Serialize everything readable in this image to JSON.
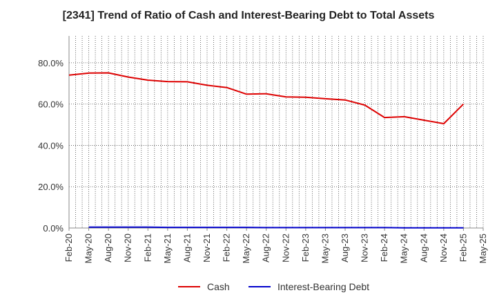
{
  "chart_data": {
    "type": "line",
    "title": "[2341]  Trend of Ratio of Cash and Interest-Bearing Debt to Total Assets",
    "xlabel": "",
    "ylabel": "",
    "ylim": [
      0,
      93
    ],
    "yticks": [
      0,
      20,
      40,
      60,
      80
    ],
    "ytick_labels": [
      "0.0%",
      "20.0%",
      "40.0%",
      "60.0%",
      "80.0%"
    ],
    "x_tick_labels": [
      "Feb-20",
      "May-20",
      "Aug-20",
      "Nov-20",
      "Feb-21",
      "May-21",
      "Aug-21",
      "Nov-21",
      "Feb-22",
      "May-22",
      "Aug-22",
      "Nov-22",
      "Feb-23",
      "May-23",
      "Aug-23",
      "Nov-23",
      "Feb-24",
      "May-24",
      "Aug-24",
      "Nov-24",
      "Feb-25",
      "May-25"
    ],
    "grid": true,
    "legend_position": "bottom",
    "series": [
      {
        "name": "Cash",
        "color": "#dd0000",
        "values": [
          74.0,
          75.0,
          75.1,
          73.1,
          71.6,
          70.9,
          70.8,
          69.1,
          68.0,
          64.8,
          65.0,
          63.5,
          63.3,
          62.6,
          62.0,
          59.5,
          53.5,
          53.9,
          52.2,
          50.5,
          60.0,
          null
        ]
      },
      {
        "name": "Interest-Bearing Debt",
        "color": "#0000cc",
        "values": [
          null,
          0.4,
          0.4,
          0.4,
          0.4,
          0.3,
          0.3,
          0.3,
          0.3,
          0.3,
          0.2,
          0.2,
          0.2,
          0.2,
          0.2,
          0.2,
          0.2,
          0.1,
          0.1,
          0.1,
          0.1,
          null
        ]
      }
    ]
  }
}
